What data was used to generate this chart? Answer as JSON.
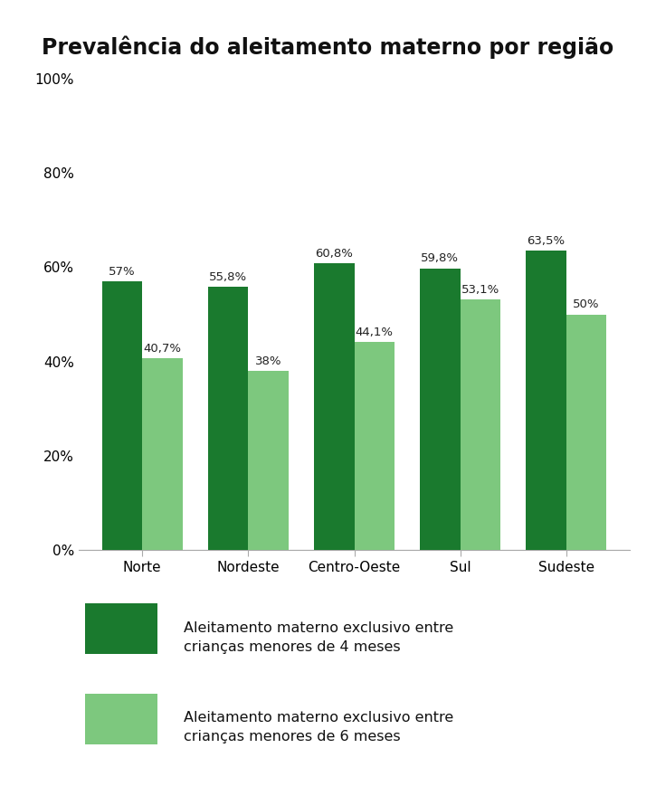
{
  "title": "Prevalência do aleitamento materno por região",
  "categories": [
    "Norte",
    "Nordeste",
    "Centro-Oeste",
    "Sul",
    "Sudeste"
  ],
  "values_4months": [
    57.0,
    55.8,
    60.8,
    59.8,
    63.5
  ],
  "values_6months": [
    40.7,
    38.0,
    44.1,
    53.1,
    50.0
  ],
  "labels_4months": [
    "57%",
    "55,8%",
    "60,8%",
    "59,8%",
    "63,5%"
  ],
  "labels_6months": [
    "40,7%",
    "38%",
    "44,1%",
    "53,1%",
    "50%"
  ],
  "color_4months": "#1a7a2e",
  "color_6months": "#7dc87e",
  "ylim": [
    0,
    100
  ],
  "yticks": [
    0,
    20,
    40,
    60,
    80,
    100
  ],
  "ytick_labels": [
    "0%",
    "20%",
    "40%",
    "60%",
    "80%",
    "100%"
  ],
  "legend_label_4months": "Aleitamento materno exclusivo entre\ncrianças menores de 4 meses",
  "legend_label_6months": "Aleitamento materno exclusivo entre\ncrianças menores de 6 meses",
  "background_color": "#ffffff",
  "bar_width": 0.38,
  "title_fontsize": 17,
  "label_fontsize": 9.5,
  "tick_fontsize": 11,
  "legend_fontsize": 11.5
}
